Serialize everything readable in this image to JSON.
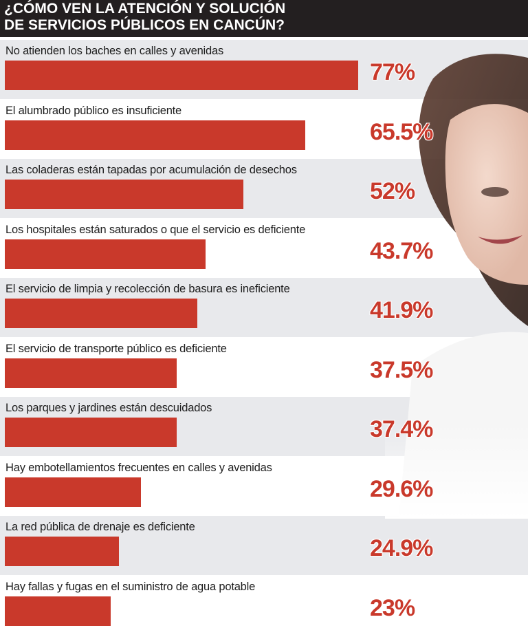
{
  "header": {
    "title_line1": "¿CÓMO VEN LA ATENCIÓN Y SOLUCIÓN",
    "title_line2": "DE SERVICIOS PÚBLICOS EN CANCÚN?"
  },
  "chart_data": {
    "type": "bar",
    "orientation": "horizontal",
    "title": "¿CÓMO VEN LA ATENCIÓN Y SOLUCIÓN DE SERVICIOS PÚBLICOS EN CANCÚN?",
    "categories": [
      "No atienden los baches en calles y avenidas",
      "El alumbrado público es insuficiente",
      "Las coladeras están tapadas por acumulación de desechos",
      "Los hospitales están saturados o que el servicio es deficiente",
      "El servicio de limpia y recolección de basura es ineficiente",
      "El servicio de transporte público es deficiente",
      "Los parques y jardines están descuidados",
      "Hay embotellamientos frecuentes en calles y avenidas",
      "La red pública de drenaje es deficiente",
      "Hay fallas y fugas en el suministro de agua potable"
    ],
    "values": [
      77,
      65.5,
      52,
      43.7,
      41.9,
      37.5,
      37.4,
      29.6,
      24.9,
      23
    ],
    "value_labels": [
      "77%",
      "65.5%",
      "52%",
      "43.7%",
      "41.9%",
      "37.5%",
      "37.4%",
      "29.6%",
      "24.9%",
      "23%"
    ],
    "unit": "%",
    "xlim": [
      0,
      77
    ],
    "grid": false,
    "bar_color": "#c9392b"
  }
}
